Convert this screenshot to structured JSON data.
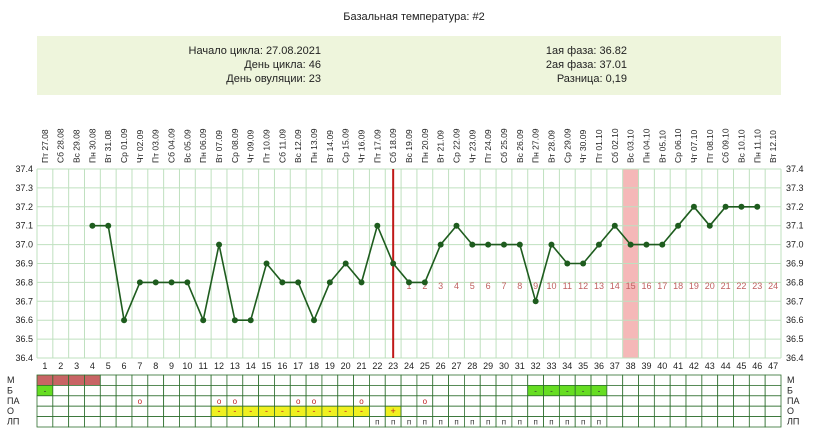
{
  "title": "Базальная температура: #2",
  "summary": {
    "cycle_start": "Начало цикла: 27.08.2021",
    "cycle_day": "День цикла: 46",
    "ovulation_day": "День овуляции: 23",
    "phase1": "1ая фаза: 36.82",
    "phase2": "2ая фаза: 37.01",
    "difference": "Разница: 0,19"
  },
  "colors": {
    "line": "#1e5c1e",
    "marker": "#1e5c1e",
    "grid": "#bfe0bf",
    "ovulation_line": "#c01818",
    "highlight": "#f5b8b8",
    "post_ovulation_labels": "#c06060",
    "period_fill": "#c86464",
    "green_fill": "#66dd22",
    "yellow_fill": "#f0f020"
  },
  "chart_data": {
    "type": "line",
    "title": "Базальная температура: #2",
    "ylim": [
      36.4,
      37.4
    ],
    "yticks": [
      "37.4",
      "37.3",
      "37.2",
      "37.1",
      "37.0",
      "36.9",
      "36.8",
      "36.7",
      "36.6",
      "36.5",
      "36.4"
    ],
    "date_labels": [
      "Пт 27.08",
      "Сб 28.08",
      "Вс 29.08",
      "Пн 30.08",
      "Вт 31.08",
      "Ср 01.09",
      "Чт 02.09",
      "Пт 03.09",
      "Сб 04.09",
      "Вс 05.09",
      "Пн 06.09",
      "Вт 07.09",
      "Ср 08.09",
      "Чт 09.09",
      "Пт 10.09",
      "Сб 11.09",
      "Вс 12.09",
      "Пн 13.09",
      "Вт 14.09",
      "Ср 15.09",
      "Чт 16.09",
      "Пт 17.09",
      "Сб 18.09",
      "Вс 19.09",
      "Пн 20.09",
      "Вт 21.09",
      "Ср 22.09",
      "Чт 23.09",
      "Пт 24.09",
      "Сб 25.09",
      "Вс 26.09",
      "Пн 27.09",
      "Вт 28.09",
      "Ср 29.09",
      "Чт 30.09",
      "Пт 01.10",
      "Сб 02.10",
      "Вс 03.10",
      "Пн 04.10",
      "Вт 05.10",
      "Ср 06.10",
      "Чт 07.10",
      "Пт 08.10",
      "Сб 09.10",
      "Вс 10.10",
      "Пн 11.10",
      "Вт 12.10"
    ],
    "day_numbers": [
      "1",
      "2",
      "3",
      "4",
      "5",
      "6",
      "7",
      "8",
      "9",
      "10",
      "11",
      "12",
      "13",
      "14",
      "15",
      "16",
      "17",
      "18",
      "19",
      "20",
      "21",
      "22",
      "23",
      "24",
      "25",
      "26",
      "27",
      "28",
      "29",
      "30",
      "31",
      "32",
      "33",
      "34",
      "35",
      "36",
      "37",
      "38",
      "39",
      "40",
      "41",
      "42",
      "43",
      "44",
      "45",
      "46",
      "47"
    ],
    "series": [
      {
        "x": [
          4,
          5,
          6,
          7,
          8,
          9,
          10,
          11,
          12,
          13,
          14,
          15,
          16,
          17,
          18,
          19,
          20,
          21,
          22,
          23,
          24,
          25,
          26,
          27,
          28,
          29,
          30,
          31,
          32,
          33,
          34,
          35,
          36,
          37,
          38,
          39,
          40,
          41,
          42,
          43,
          44,
          45,
          46
        ],
        "values": [
          37.1,
          37.1,
          36.6,
          36.8,
          36.8,
          36.8,
          36.8,
          36.6,
          37.0,
          36.6,
          36.6,
          36.9,
          36.8,
          36.8,
          36.6,
          36.8,
          36.9,
          36.8,
          37.1,
          36.9,
          36.8,
          36.8,
          37.0,
          37.1,
          37.0,
          37.0,
          37.0,
          37.0,
          36.7,
          37.0,
          36.9,
          36.9,
          37.0,
          37.1,
          37.0,
          37.0,
          37.0,
          37.1,
          37.2,
          37.1,
          37.2,
          37.2,
          37.2
        ]
      }
    ],
    "ovulation_day": 23,
    "highlight_day": 38,
    "post_ovulation_labels": [
      "1",
      "2",
      "3",
      "4",
      "5",
      "6",
      "7",
      "8",
      "9",
      "10",
      "11",
      "12",
      "13",
      "14",
      "15",
      "16",
      "17",
      "18",
      "19",
      "20",
      "21",
      "22",
      "23",
      "24"
    ],
    "post_ovulation_start_day": 24,
    "post_ovulation_value": 36.78
  },
  "symptoms": {
    "labels": [
      "М",
      "Б",
      "ПА",
      "О",
      "ЛП"
    ],
    "M": {
      "days": [
        1,
        2,
        3,
        4
      ]
    },
    "B": {
      "days": [
        1,
        32,
        33,
        34,
        35,
        36
      ],
      "mark": "-"
    },
    "PA": {
      "days": [
        7,
        12,
        13,
        17,
        18,
        21,
        25
      ],
      "mark": "o"
    },
    "O": {
      "days": [
        12,
        13,
        14,
        15,
        16,
        17,
        18,
        19,
        20,
        21,
        23
      ],
      "marks": [
        "-",
        "-",
        "-",
        "-",
        "-",
        "-",
        "-",
        "-",
        "-",
        "-",
        "+"
      ]
    },
    "LP": {
      "days": [
        22,
        23,
        24,
        25,
        26,
        27,
        28,
        29,
        30,
        31,
        32,
        33,
        34,
        35,
        36
      ],
      "mark": "п"
    }
  }
}
